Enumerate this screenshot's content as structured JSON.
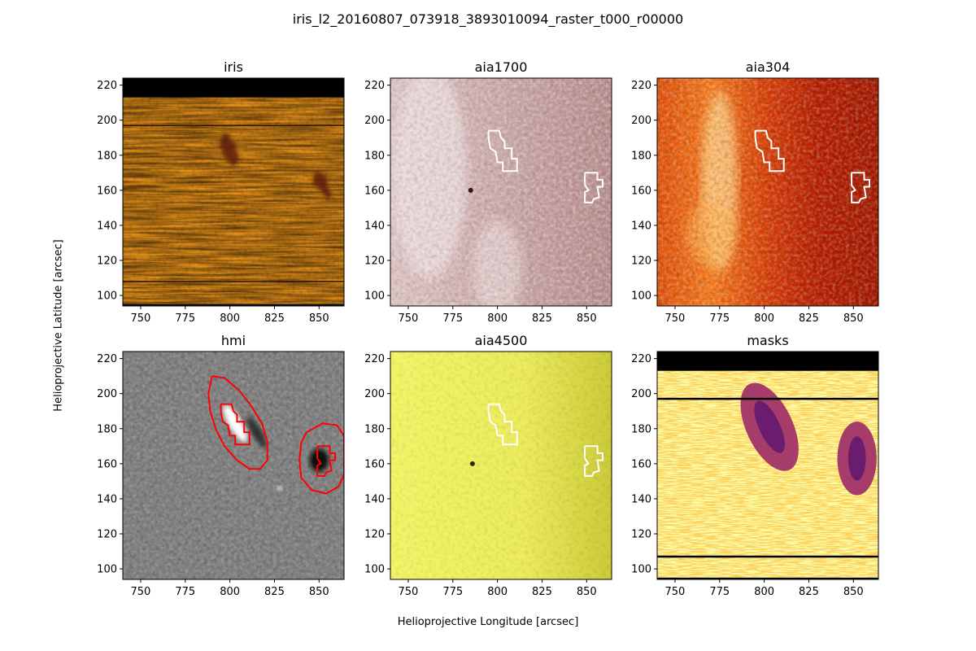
{
  "figure": {
    "title": "iris_l2_20160807_073918_3893010094_raster_t000_r00000",
    "xlabel": "Helioprojective Longitude [arcsec]",
    "ylabel": "Helioprojective Latitude [arcsec]"
  },
  "colors": {
    "contour_white": "#ffffff",
    "contour_red": "#ff0000",
    "axis": "#000000"
  },
  "chart_data": [
    {
      "type": "heatmap",
      "title": "iris",
      "colormap": "orange-yellow (afmhot)",
      "xlim": [
        740,
        864
      ],
      "ylim": [
        94,
        224
      ],
      "xticks": [
        750,
        775,
        800,
        825,
        850
      ],
      "yticks": [
        100,
        120,
        140,
        160,
        180,
        200,
        220
      ],
      "masked_rows_top": 213,
      "masked_rows_bottom": 95,
      "slit_lines_y": [
        197,
        108
      ],
      "dark_regions": [
        {
          "cx": 800,
          "cy": 183,
          "rx": 4,
          "ry": 10
        },
        {
          "cx": 852,
          "cy": 163,
          "rx": 3,
          "ry": 8
        }
      ],
      "contours": []
    },
    {
      "type": "heatmap",
      "title": "aia1700",
      "colormap": "pink-white",
      "xlim": [
        740,
        864
      ],
      "ylim": [
        94,
        224
      ],
      "xticks": [
        750,
        775,
        800,
        825,
        850
      ],
      "yticks": [
        100,
        120,
        140,
        160,
        180,
        200,
        220
      ],
      "bright_spot": {
        "x": 785,
        "y": 160
      },
      "contour_color": "white",
      "contours": [
        [
          [
            795,
            194
          ],
          [
            801,
            194
          ],
          [
            802,
            190
          ],
          [
            804,
            188
          ],
          [
            804,
            184
          ],
          [
            808,
            184
          ],
          [
            808,
            178
          ],
          [
            811,
            178
          ],
          [
            811,
            171
          ],
          [
            803,
            171
          ],
          [
            803,
            176
          ],
          [
            800,
            176
          ],
          [
            799,
            182
          ],
          [
            796,
            184
          ],
          [
            795,
            190
          ],
          [
            795,
            194
          ]
        ],
        [
          [
            849,
            170
          ],
          [
            856,
            170
          ],
          [
            856,
            166
          ],
          [
            859,
            166
          ],
          [
            859,
            162
          ],
          [
            856,
            162
          ],
          [
            857,
            156
          ],
          [
            854,
            155
          ],
          [
            853,
            153
          ],
          [
            849,
            153
          ],
          [
            849,
            159
          ],
          [
            851,
            160
          ],
          [
            849,
            163
          ],
          [
            849,
            167
          ],
          [
            849,
            170
          ]
        ]
      ]
    },
    {
      "type": "heatmap",
      "title": "aia304",
      "colormap": "red-orange (hot)",
      "xlim": [
        740,
        864
      ],
      "ylim": [
        94,
        224
      ],
      "xticks": [
        750,
        775,
        800,
        825,
        850
      ],
      "yticks": [
        100,
        120,
        140,
        160,
        180,
        200,
        220
      ],
      "contour_color": "white",
      "contours": [
        [
          [
            795,
            194
          ],
          [
            801,
            194
          ],
          [
            802,
            190
          ],
          [
            804,
            188
          ],
          [
            804,
            184
          ],
          [
            808,
            184
          ],
          [
            808,
            178
          ],
          [
            811,
            178
          ],
          [
            811,
            171
          ],
          [
            803,
            171
          ],
          [
            803,
            176
          ],
          [
            800,
            176
          ],
          [
            799,
            182
          ],
          [
            796,
            184
          ],
          [
            795,
            190
          ],
          [
            795,
            194
          ]
        ],
        [
          [
            849,
            170
          ],
          [
            856,
            170
          ],
          [
            856,
            166
          ],
          [
            859,
            166
          ],
          [
            859,
            162
          ],
          [
            856,
            162
          ],
          [
            857,
            156
          ],
          [
            854,
            155
          ],
          [
            853,
            153
          ],
          [
            849,
            153
          ],
          [
            849,
            159
          ],
          [
            851,
            160
          ],
          [
            849,
            163
          ],
          [
            849,
            167
          ],
          [
            849,
            170
          ]
        ]
      ]
    },
    {
      "type": "heatmap",
      "title": "hmi",
      "colormap": "gray",
      "xlim": [
        740,
        864
      ],
      "ylim": [
        94,
        224
      ],
      "xticks": [
        750,
        775,
        800,
        825,
        850
      ],
      "yticks": [
        100,
        120,
        140,
        160,
        180,
        200,
        220
      ],
      "contour_color": "red",
      "contours": [
        [
          [
            790,
            210
          ],
          [
            797,
            209
          ],
          [
            805,
            202
          ],
          [
            812,
            193
          ],
          [
            818,
            183
          ],
          [
            821,
            173
          ],
          [
            821,
            162
          ],
          [
            817,
            157
          ],
          [
            811,
            157
          ],
          [
            804,
            162
          ],
          [
            797,
            170
          ],
          [
            792,
            180
          ],
          [
            789,
            190
          ],
          [
            788,
            200
          ],
          [
            790,
            210
          ]
        ],
        [
          [
            843,
            178
          ],
          [
            852,
            183
          ],
          [
            860,
            182
          ],
          [
            864,
            176
          ],
          [
            864,
            154
          ],
          [
            861,
            147
          ],
          [
            854,
            143
          ],
          [
            846,
            145
          ],
          [
            840,
            152
          ],
          [
            839,
            162
          ],
          [
            840,
            172
          ],
          [
            843,
            178
          ]
        ],
        [
          [
            795,
            194
          ],
          [
            801,
            194
          ],
          [
            802,
            190
          ],
          [
            804,
            188
          ],
          [
            804,
            184
          ],
          [
            808,
            184
          ],
          [
            808,
            178
          ],
          [
            811,
            178
          ],
          [
            811,
            171
          ],
          [
            803,
            171
          ],
          [
            803,
            176
          ],
          [
            800,
            176
          ],
          [
            799,
            182
          ],
          [
            796,
            184
          ],
          [
            795,
            190
          ],
          [
            795,
            194
          ]
        ],
        [
          [
            849,
            170
          ],
          [
            856,
            170
          ],
          [
            856,
            166
          ],
          [
            859,
            166
          ],
          [
            859,
            162
          ],
          [
            856,
            162
          ],
          [
            857,
            156
          ],
          [
            854,
            155
          ],
          [
            853,
            153
          ],
          [
            849,
            153
          ],
          [
            849,
            159
          ],
          [
            851,
            160
          ],
          [
            849,
            163
          ],
          [
            849,
            167
          ],
          [
            849,
            170
          ]
        ]
      ]
    },
    {
      "type": "heatmap",
      "title": "aia4500",
      "colormap": "yellow",
      "xlim": [
        740,
        864
      ],
      "ylim": [
        94,
        224
      ],
      "xticks": [
        750,
        775,
        800,
        825,
        850
      ],
      "yticks": [
        100,
        120,
        140,
        160,
        180,
        200,
        220
      ],
      "bright_spot": {
        "x": 786,
        "y": 160
      },
      "contour_color": "white",
      "contours": [
        [
          [
            795,
            194
          ],
          [
            801,
            194
          ],
          [
            802,
            190
          ],
          [
            804,
            188
          ],
          [
            804,
            184
          ],
          [
            808,
            184
          ],
          [
            808,
            178
          ],
          [
            811,
            178
          ],
          [
            811,
            171
          ],
          [
            803,
            171
          ],
          [
            803,
            176
          ],
          [
            800,
            176
          ],
          [
            799,
            182
          ],
          [
            796,
            184
          ],
          [
            795,
            190
          ],
          [
            795,
            194
          ]
        ],
        [
          [
            849,
            170
          ],
          [
            856,
            170
          ],
          [
            856,
            166
          ],
          [
            859,
            166
          ],
          [
            859,
            162
          ],
          [
            856,
            162
          ],
          [
            857,
            156
          ],
          [
            854,
            155
          ],
          [
            853,
            153
          ],
          [
            849,
            153
          ],
          [
            849,
            159
          ],
          [
            851,
            160
          ],
          [
            849,
            163
          ],
          [
            849,
            167
          ],
          [
            849,
            170
          ]
        ]
      ]
    },
    {
      "type": "heatmap",
      "title": "masks",
      "colormap": "inferno (light yellow background)",
      "xlim": [
        740,
        864
      ],
      "ylim": [
        94,
        224
      ],
      "xticks": [
        750,
        775,
        800,
        825,
        850
      ],
      "yticks": [
        100,
        120,
        140,
        160,
        180,
        200,
        220
      ],
      "masked_rows_top": 213,
      "masked_rows_bottom": 95,
      "slit_lines_y": [
        197,
        107
      ],
      "mask_regions": [
        {
          "cx": 803,
          "cy": 181,
          "rx": 13,
          "ry": 27,
          "rotate": -25
        },
        {
          "cx": 852,
          "cy": 163,
          "rx": 11,
          "ry": 21,
          "rotate": 0
        }
      ],
      "contours": []
    }
  ]
}
